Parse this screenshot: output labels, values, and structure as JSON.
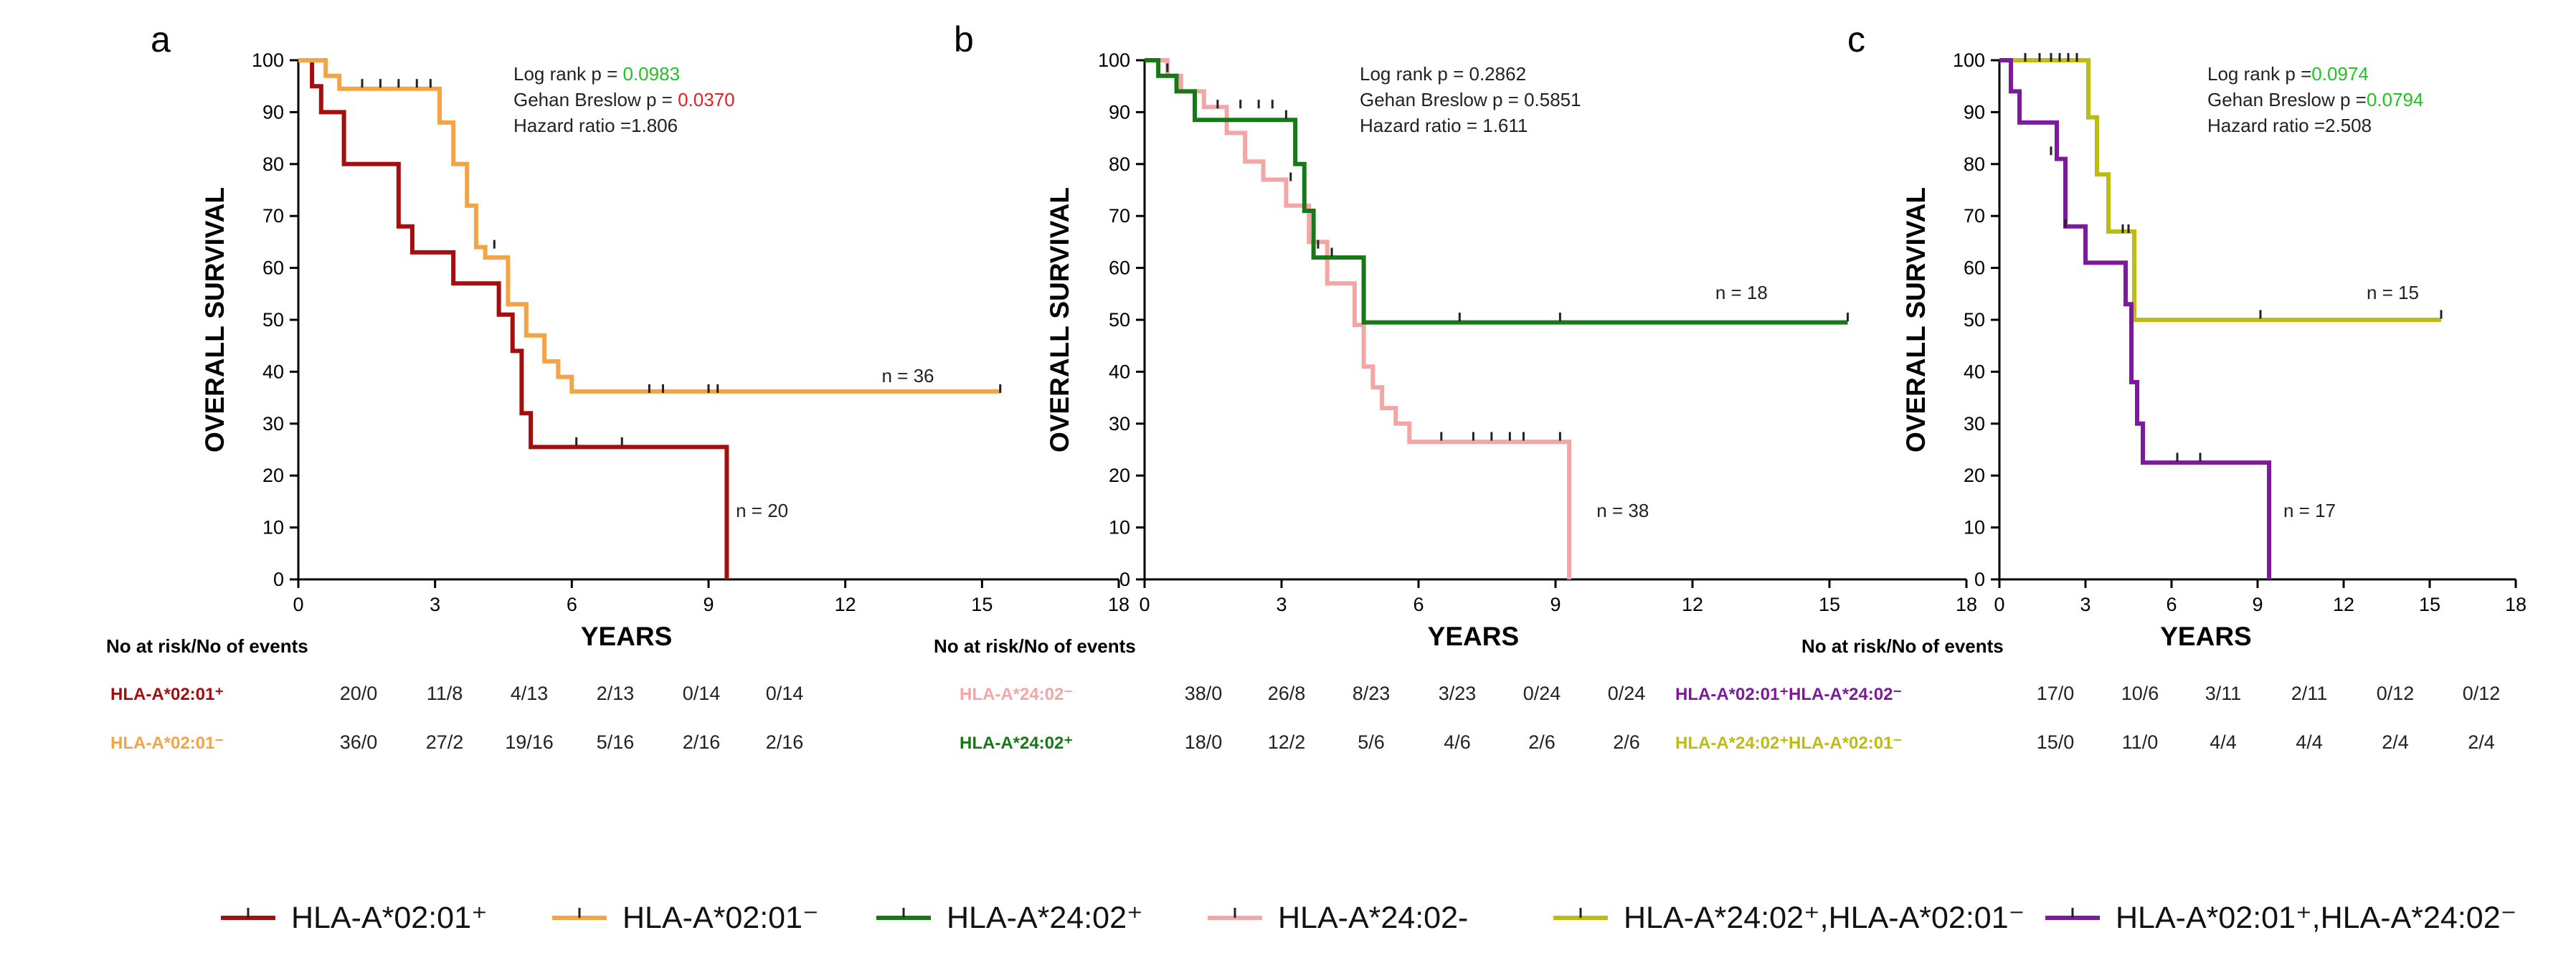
{
  "colors": {
    "a0201_pos": "#a50e0e",
    "a0201_neg": "#f4a445",
    "a2402_pos": "#157a15",
    "a2402_neg": "#f4a6a6",
    "dual_2402pos_0201neg": "#bcbc14",
    "dual_0201pos_2402neg": "#7d1a9c",
    "sig_green": "#1fc41f",
    "sig_red": "#e02020"
  },
  "chart_data": [
    {
      "type": "line",
      "panel": "a",
      "xlabel": "YEARS",
      "ylabel": "OVERALL SURVIVAL",
      "xlim": [
        0,
        18
      ],
      "ylim": [
        0,
        100
      ],
      "xticks": [
        "0",
        "3",
        "6",
        "9",
        "12",
        "15",
        "18"
      ],
      "yticks": [
        "0",
        "10",
        "20",
        "30",
        "40",
        "50",
        "60",
        "70",
        "80",
        "90",
        "100"
      ],
      "stats": {
        "log_rank_label": "Log rank p = ",
        "log_rank_value": "0.0983",
        "log_rank_color": "#1fc41f",
        "gehan_label": "Gehan Breslow p = ",
        "gehan_value": "0.0370",
        "gehan_color": "#e02020",
        "hazard_label": "Hazard ratio =",
        "hazard_value": "1.806"
      },
      "series": [
        {
          "name": "HLA-A*02:01⁺",
          "color": "#a50e0e",
          "n_label": "n = 20",
          "n_at": [
            9.6,
            12
          ],
          "x": [
            0,
            0.3,
            0.3,
            0.5,
            0.5,
            1.0,
            1.0,
            2.2,
            2.2,
            2.5,
            2.5,
            3.4,
            3.4,
            4.4,
            4.4,
            4.7,
            4.7,
            4.9,
            4.9,
            5.1,
            5.1,
            9.4,
            9.4
          ],
          "y": [
            100,
            100,
            95,
            95,
            90,
            90,
            80,
            80,
            68,
            68,
            63,
            63,
            57,
            57,
            51,
            51,
            44,
            44,
            32,
            32,
            25.5,
            25.5,
            0
          ],
          "censor_x": [
            6.1,
            7.1
          ],
          "censor_y": [
            26,
            26
          ]
        },
        {
          "name": "HLA-A*02:01⁻",
          "color": "#f4a445",
          "n_label": "n = 36",
          "n_at": [
            12.8,
            38
          ],
          "x": [
            0,
            0.6,
            0.6,
            0.9,
            0.9,
            3.1,
            3.1,
            3.4,
            3.4,
            3.7,
            3.7,
            3.9,
            3.9,
            4.1,
            4.1,
            4.6,
            4.6,
            5.0,
            5.0,
            5.4,
            5.4,
            5.7,
            5.7,
            6.0,
            6.0,
            15.4
          ],
          "y": [
            100,
            100,
            97,
            97,
            94.5,
            94.5,
            88,
            88,
            80,
            80,
            72,
            72,
            64,
            64,
            62,
            62,
            53,
            53,
            47,
            47,
            42,
            42,
            39,
            39,
            36.2,
            36.2
          ],
          "censor_x": [
            1.4,
            1.8,
            2.2,
            2.6,
            2.9,
            4.3,
            7.7,
            8.0,
            9.0,
            9.2,
            15.4
          ],
          "censor_y": [
            95,
            95,
            95,
            95,
            95,
            64,
            36.2,
            36.2,
            36.2,
            36.2,
            36.2
          ]
        }
      ],
      "risk_table": {
        "title": "No at risk/No of events",
        "rows": [
          {
            "label": "HLA-A*02:01⁺",
            "color": "#a50e0e",
            "values": [
              "20/0",
              "11/8",
              "4/13",
              "2/13",
              "0/14",
              "0/14"
            ]
          },
          {
            "label": "HLA-A*02:01⁻",
            "color": "#f4a445",
            "values": [
              "36/0",
              "27/2",
              "19/16",
              "5/16",
              "2/16",
              "2/16"
            ]
          }
        ]
      }
    },
    {
      "type": "line",
      "panel": "b",
      "xlabel": "YEARS",
      "ylabel": "OVERALL SURVIVAL",
      "xlim": [
        0,
        18
      ],
      "ylim": [
        0,
        100
      ],
      "xticks": [
        "0",
        "3",
        "6",
        "9",
        "12",
        "15",
        "18"
      ],
      "yticks": [
        "0",
        "10",
        "20",
        "30",
        "40",
        "50",
        "60",
        "70",
        "80",
        "90",
        "100"
      ],
      "stats": {
        "log_rank_label": "Log rank p = ",
        "log_rank_value": "0.2862",
        "log_rank_color": "#222222",
        "gehan_label": "Gehan Breslow p = ",
        "gehan_value": "0.5851",
        "gehan_color": "#222222",
        "hazard_label": "Hazard ratio = ",
        "hazard_value": "1.611"
      },
      "series": [
        {
          "name": "HLA-A*24:02-",
          "color": "#f4a6a6",
          "n_label": "n = 38",
          "n_at": [
            9.9,
            12
          ],
          "x": [
            0,
            0.5,
            0.5,
            0.8,
            0.8,
            1.3,
            1.3,
            1.8,
            1.8,
            2.2,
            2.2,
            2.6,
            2.6,
            3.1,
            3.1,
            3.6,
            3.6,
            4.0,
            4.0,
            4.6,
            4.6,
            4.8,
            4.8,
            5.0,
            5.0,
            5.2,
            5.2,
            5.5,
            5.5,
            5.8,
            5.8,
            9.3,
            9.3
          ],
          "y": [
            100,
            100,
            97,
            97,
            94,
            94,
            91,
            91,
            86,
            86,
            80.5,
            80.5,
            77,
            77,
            72,
            72,
            65,
            65,
            57,
            57,
            49,
            49,
            41,
            41,
            37,
            37,
            33,
            33,
            30,
            30,
            26.5,
            26.5,
            0
          ],
          "censor_x": [
            1.6,
            2.1,
            2.5,
            2.8,
            3.2,
            3.8,
            6.5,
            7.2,
            7.6,
            8.0,
            8.3,
            9.1
          ],
          "censor_y": [
            91,
            91,
            91,
            91,
            77,
            64,
            27,
            27,
            27,
            27,
            27,
            27
          ]
        },
        {
          "name": "HLA-A*24:02⁺",
          "color": "#157a15",
          "n_label": "n = 18",
          "n_at": [
            12.5,
            54
          ],
          "x": [
            0,
            0.3,
            0.3,
            0.7,
            0.7,
            1.1,
            1.1,
            3.3,
            3.3,
            3.5,
            3.5,
            3.7,
            3.7,
            4.4,
            4.4,
            4.8,
            4.8,
            15.4
          ],
          "y": [
            100,
            100,
            97,
            97,
            94,
            94,
            88.5,
            88.5,
            80,
            80,
            71,
            71,
            62,
            62,
            62,
            62,
            49.5,
            49.5
          ],
          "censor_x": [
            0.5,
            3.1,
            4.1,
            6.9,
            9.1,
            15.4
          ],
          "censor_y": [
            98,
            89,
            62.5,
            50,
            50,
            50
          ]
        }
      ],
      "risk_table": {
        "title": "No at risk/No of events",
        "rows": [
          {
            "label": "HLA-A*24:02⁻",
            "color": "#f4a6a6",
            "values": [
              "38/0",
              "26/8",
              "8/23",
              "3/23",
              "0/24",
              "0/24"
            ]
          },
          {
            "label": "HLA-A*24:02⁺",
            "color": "#157a15",
            "values": [
              "18/0",
              "12/2",
              "5/6",
              "4/6",
              "2/6",
              "2/6"
            ]
          }
        ]
      }
    },
    {
      "type": "line",
      "panel": "c",
      "xlabel": "YEARS",
      "ylabel": "OVERALL SURVIVAL",
      "xlim": [
        0,
        18
      ],
      "ylim": [
        0,
        100
      ],
      "xticks": [
        "0",
        "3",
        "6",
        "9",
        "12",
        "15",
        "18"
      ],
      "yticks": [
        "0",
        "10",
        "20",
        "30",
        "40",
        "50",
        "60",
        "70",
        "80",
        "90",
        "100"
      ],
      "stats": {
        "log_rank_label": "Log rank p =",
        "log_rank_value": "0.0974",
        "log_rank_color": "#1fc41f",
        "gehan_label": "Gehan Breslow p =",
        "gehan_value": "0.0794",
        "gehan_color": "#1fc41f",
        "hazard_label": "Hazard ratio =",
        "hazard_value": "2.508"
      },
      "series": [
        {
          "name": "HLA-A*24:02⁺,HLA-A*02:01⁻",
          "color": "#bcbc14",
          "n_label": "n = 15",
          "n_at": [
            12.8,
            54
          ],
          "x": [
            0,
            3.1,
            3.1,
            3.4,
            3.4,
            3.8,
            3.8,
            4.7,
            4.7,
            15.4
          ],
          "y": [
            100,
            100,
            89,
            89,
            78,
            78,
            67,
            67,
            50,
            50
          ],
          "censor_x": [
            0.9,
            1.4,
            1.8,
            2.1,
            2.4,
            2.7,
            4.3,
            4.5,
            9.1,
            15.4
          ],
          "censor_y": [
            100,
            100,
            100,
            100,
            100,
            100,
            67,
            67,
            50.5,
            50.5
          ]
        },
        {
          "name": "HLA-A*02:01⁺,HLA-A*24:02⁻",
          "color": "#7d1a9c",
          "n_label": "n = 17",
          "n_at": [
            9.9,
            12
          ],
          "x": [
            0,
            0.4,
            0.4,
            0.7,
            0.7,
            2.0,
            2.0,
            2.3,
            2.3,
            3.0,
            3.0,
            4.4,
            4.4,
            4.6,
            4.6,
            4.8,
            4.8,
            5.0,
            5.0,
            9.4,
            9.4
          ],
          "y": [
            100,
            100,
            94,
            94,
            88,
            88,
            81,
            81,
            68,
            68,
            61,
            61,
            53,
            53,
            38,
            38,
            30,
            30,
            22.5,
            22.5,
            0
          ],
          "censor_x": [
            1.8,
            2.3,
            6.2,
            7.0
          ],
          "censor_y": [
            82,
            68,
            23,
            23
          ]
        }
      ],
      "risk_table": {
        "title": "No at risk/No of events",
        "rows": [
          {
            "label": "HLA-A*02:01⁺HLA-A*24:02⁻",
            "color": "#7d1a9c",
            "values": [
              "17/0",
              "10/6",
              "3/11",
              "2/11",
              "0/12",
              "0/12"
            ]
          },
          {
            "label": "HLA-A*24:02⁺HLA-A*02:01⁻",
            "color": "#bcbc14",
            "values": [
              "15/0",
              "11/0",
              "4/4",
              "4/4",
              "2/4",
              "2/4"
            ]
          }
        ]
      }
    }
  ],
  "legend": [
    {
      "label": "HLA-A*02:01⁺",
      "color": "#a50e0e"
    },
    {
      "label": "HLA-A*02:01⁻",
      "color": "#f4a445"
    },
    {
      "label": "HLA-A*24:02⁺",
      "color": "#157a15"
    },
    {
      "label": "HLA-A*24:02-",
      "color": "#f4a6a6"
    },
    {
      "label": "HLA-A*24:02⁺,HLA-A*02:01⁻",
      "color": "#bcbc14"
    },
    {
      "label": "HLA-A*02:01⁺,HLA-A*24:02⁻",
      "color": "#7d1a9c"
    }
  ]
}
